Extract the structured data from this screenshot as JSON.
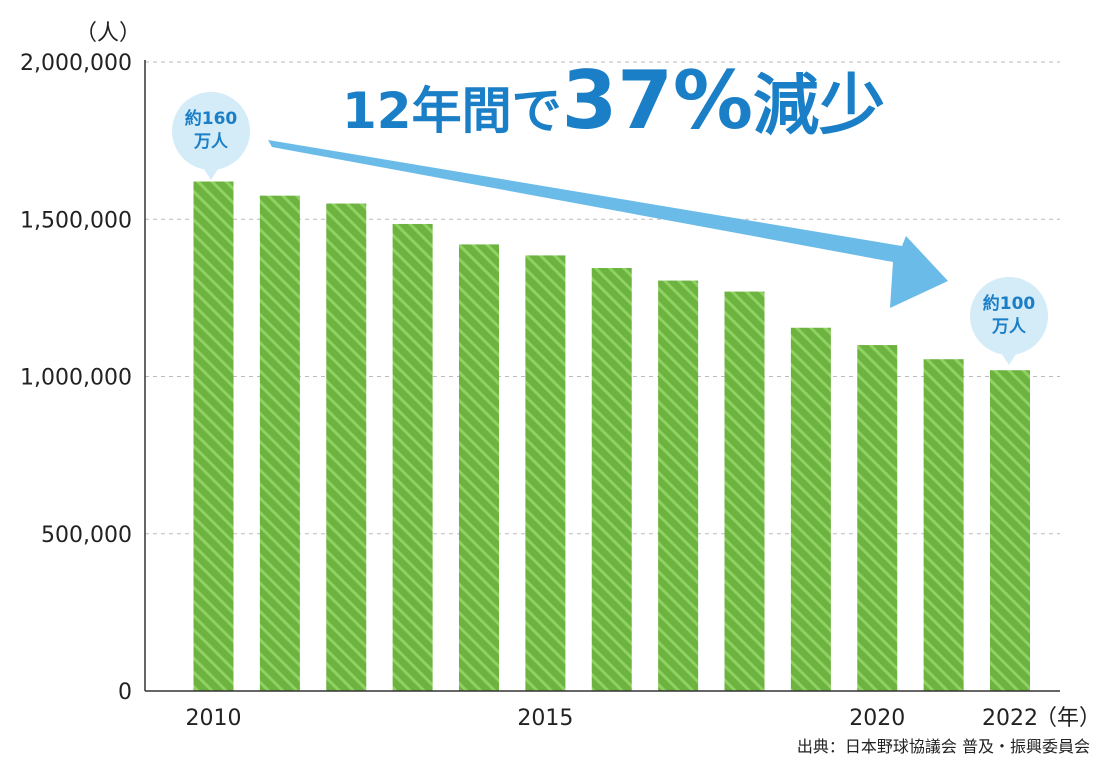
{
  "chart_data": {
    "type": "bar",
    "title": "",
    "ylabel": "（人）",
    "xlabel": "（年）",
    "ylim": [
      0,
      2000000
    ],
    "yticks": [
      0,
      500000,
      1000000,
      1500000,
      2000000
    ],
    "ytick_labels": [
      "0",
      "500,000",
      "1,000,000",
      "1,500,000",
      "2,000,000"
    ],
    "categories": [
      2010,
      2011,
      2012,
      2013,
      2014,
      2015,
      2016,
      2017,
      2018,
      2019,
      2020,
      2021,
      2022
    ],
    "xtick_labels": [
      {
        "index": 0,
        "label": "2010"
      },
      {
        "index": 5,
        "label": "2015"
      },
      {
        "index": 10,
        "label": "2020"
      },
      {
        "index": 12,
        "label": "2022"
      }
    ],
    "values": [
      1620000,
      1575000,
      1550000,
      1485000,
      1420000,
      1385000,
      1345000,
      1305000,
      1270000,
      1155000,
      1100000,
      1055000,
      1020000
    ],
    "grid": true,
    "bar_color": "#6db33f",
    "bar_stripe_color": "#8fd163",
    "annotations": {
      "headline": {
        "part1": "12年間で",
        "part2": "37%",
        "part3": "減少"
      },
      "start_bubble": {
        "line1": "約160",
        "line2": "万人"
      },
      "end_bubble": {
        "line1": "約100",
        "line2": "万人"
      }
    },
    "accent_color": "#1a7fc6",
    "bubble_color": "#d4ebf8",
    "arrow_color": "#6bbbe8"
  },
  "source": "出典：日本野球協議会 普及・振興委員会"
}
